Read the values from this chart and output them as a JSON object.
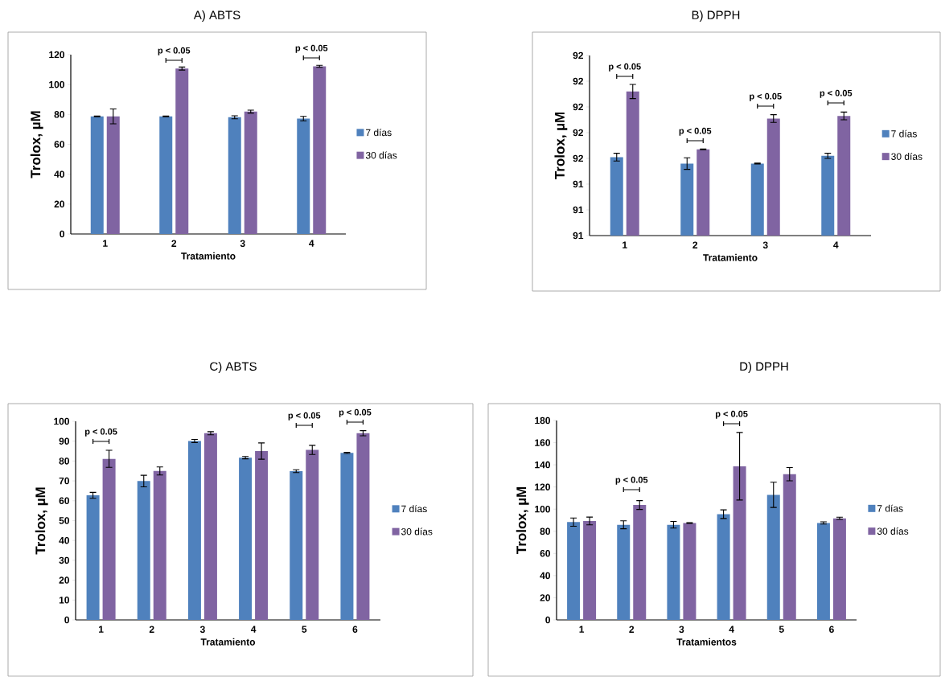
{
  "chart_data": [
    {
      "type": "bar",
      "title": "A) ABTS",
      "xlabel": "Tratamiento",
      "ylabel": "Trolox, µM",
      "categories": [
        "1",
        "2",
        "3",
        "4"
      ],
      "ylim": [
        0,
        120
      ],
      "yticks": [
        0,
        20,
        40,
        60,
        80,
        100,
        120
      ],
      "legend": "right",
      "series": [
        {
          "name": "7 días",
          "color": "#4f81bd",
          "values": [
            78.7,
            78.7,
            78.1,
            77.2
          ],
          "errors": [
            0.3,
            0.3,
            1,
            1.5
          ]
        },
        {
          "name": "30 días",
          "color": "#8064a2",
          "values": [
            78.7,
            110.7,
            81.9,
            112.2
          ],
          "errors": [
            5,
            1,
            1,
            0.7
          ]
        }
      ],
      "annotations": [
        "p < 0.05",
        "p < 0.05"
      ]
    },
    {
      "type": "bar",
      "title": "B) DPPH",
      "xlabel": "Tratamiento",
      "ylabel": "Trolox, µM",
      "categories": [
        "1",
        "2",
        "3",
        "4"
      ],
      "ylim": [
        91,
        92.4
      ],
      "yticks": [
        {
          "value": 91.0,
          "label": "91"
        },
        {
          "value": 91.2,
          "label": "91"
        },
        {
          "value": 91.4,
          "label": "91"
        },
        {
          "value": 91.6,
          "label": "92"
        },
        {
          "value": 91.8,
          "label": "92"
        },
        {
          "value": 92.0,
          "label": "92"
        },
        {
          "value": 92.2,
          "label": "92"
        },
        {
          "value": 92.4,
          "label": "92"
        }
      ],
      "legend": "right",
      "series": [
        {
          "name": "7 días",
          "color": "#4f81bd",
          "values": [
            91.61,
            91.56,
            91.56,
            91.62
          ],
          "errors": [
            0.03,
            0.045,
            0.003,
            0.02
          ]
        },
        {
          "name": "30 días",
          "color": "#8064a2",
          "values": [
            92.12,
            91.67,
            91.91,
            91.93
          ],
          "errors": [
            0.055,
            0.003,
            0.03,
            0.03
          ]
        }
      ],
      "annotations": [
        "p < 0.05",
        "p < 0.05",
        "p < 0.05",
        "p < 0.05"
      ]
    },
    {
      "type": "bar",
      "title": "C) ABTS",
      "xlabel": "Tratamiento",
      "ylabel": "Trolox, µM",
      "categories": [
        "1",
        "2",
        "3",
        "4",
        "5",
        "6"
      ],
      "ylim": [
        0,
        100
      ],
      "yticks": [
        0,
        10,
        20,
        30,
        40,
        50,
        60,
        70,
        80,
        90,
        100
      ],
      "legend": "right",
      "series": [
        {
          "name": "7 días",
          "color": "#4f81bd",
          "values": [
            62.7,
            69.9,
            90.1,
            81.7,
            74.9,
            84.1
          ],
          "errors": [
            1.5,
            2.9,
            0.8,
            0.6,
            0.7,
            0.3
          ]
        },
        {
          "name": "30 días",
          "color": "#8064a2",
          "values": [
            81.1,
            75.0,
            94.0,
            85.0,
            85.6,
            94.0
          ],
          "errors": [
            4.3,
            2,
            0.8,
            4.1,
            2.3,
            1.3
          ]
        }
      ],
      "annotations": [
        "p < 0.05",
        "p < 0.05",
        "p < 0.05"
      ]
    },
    {
      "type": "bar",
      "title": "D) DPPH",
      "xlabel": "Tratamientos",
      "ylabel": "Trolox, µM",
      "categories": [
        "1",
        "2",
        "3",
        "4",
        "5",
        "6"
      ],
      "ylim": [
        0,
        180
      ],
      "yticks": [
        0,
        20,
        40,
        60,
        80,
        100,
        120,
        140,
        160,
        180
      ],
      "legend": "right",
      "series": [
        {
          "name": "7 días",
          "color": "#4f81bd",
          "values": [
            88.3,
            85.9,
            85.9,
            95.4,
            112.9,
            87.5
          ],
          "errors": [
            3.7,
            3.6,
            3,
            3.9,
            11.4,
            1
          ]
        },
        {
          "name": "30 días",
          "color": "#8064a2",
          "values": [
            89.3,
            103.7,
            87.5,
            138.7,
            131.5,
            91.7
          ],
          "errors": [
            3.5,
            4,
            0.3,
            30.5,
            6,
            1
          ]
        }
      ],
      "annotations": [
        "p < 0.05",
        "p < 0.05"
      ]
    }
  ]
}
